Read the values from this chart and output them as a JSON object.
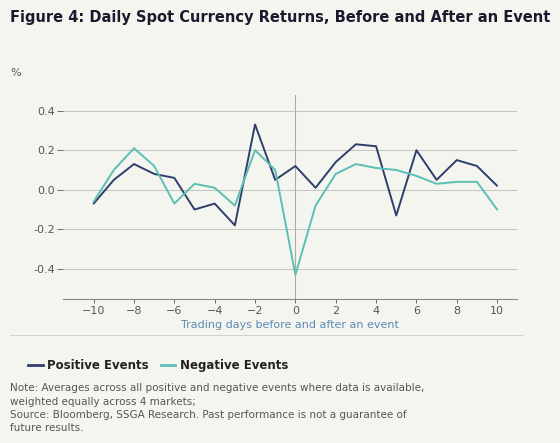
{
  "title": "Figure 4: Daily Spot Currency Returns, Before and After an Event",
  "xlabel": "Trading days before and after an event",
  "ylabel": "%",
  "x": [
    -10,
    -9,
    -8,
    -7,
    -6,
    -5,
    -4,
    -3,
    -2,
    -1,
    0,
    1,
    2,
    3,
    4,
    5,
    6,
    7,
    8,
    9,
    10
  ],
  "positive_events": [
    -0.07,
    0.05,
    0.13,
    0.08,
    0.06,
    -0.1,
    -0.07,
    -0.18,
    0.33,
    0.05,
    0.12,
    0.01,
    0.14,
    0.23,
    0.22,
    -0.13,
    0.2,
    0.05,
    0.15,
    0.12,
    0.02
  ],
  "negative_events": [
    -0.06,
    0.1,
    0.21,
    0.12,
    -0.07,
    0.03,
    0.01,
    -0.08,
    0.2,
    0.1,
    -0.43,
    -0.08,
    0.08,
    0.13,
    0.11,
    0.1,
    0.07,
    0.03,
    0.04,
    0.04,
    -0.1
  ],
  "positive_color": "#2e3f6e",
  "negative_color": "#5bbfb5",
  "ylim": [
    -0.55,
    0.48
  ],
  "yticks": [
    -0.4,
    -0.2,
    0.0,
    0.2,
    0.4
  ],
  "xticks": [
    -10,
    -8,
    -6,
    -4,
    -2,
    0,
    2,
    4,
    6,
    8,
    10
  ],
  "xlim_left": -11.5,
  "xlim_right": 11.0,
  "vline_x": 0,
  "note": "Note: Averages across all positive and negative events where data is available,\nweighted equally across 4 markets;\nSource: Bloomberg, SSGA Research. Past performance is not a guarantee of\nfuture results.",
  "legend_positive": "Positive Events",
  "legend_negative": "Negative Events",
  "background_color": "#f5f5f0",
  "grid_color": "#bbbbbb",
  "line_width": 1.4,
  "title_fontsize": 10.5,
  "tick_fontsize": 8,
  "xlabel_fontsize": 8,
  "ylabel_fontsize": 8,
  "note_fontsize": 7.5,
  "legend_fontsize": 8.5
}
